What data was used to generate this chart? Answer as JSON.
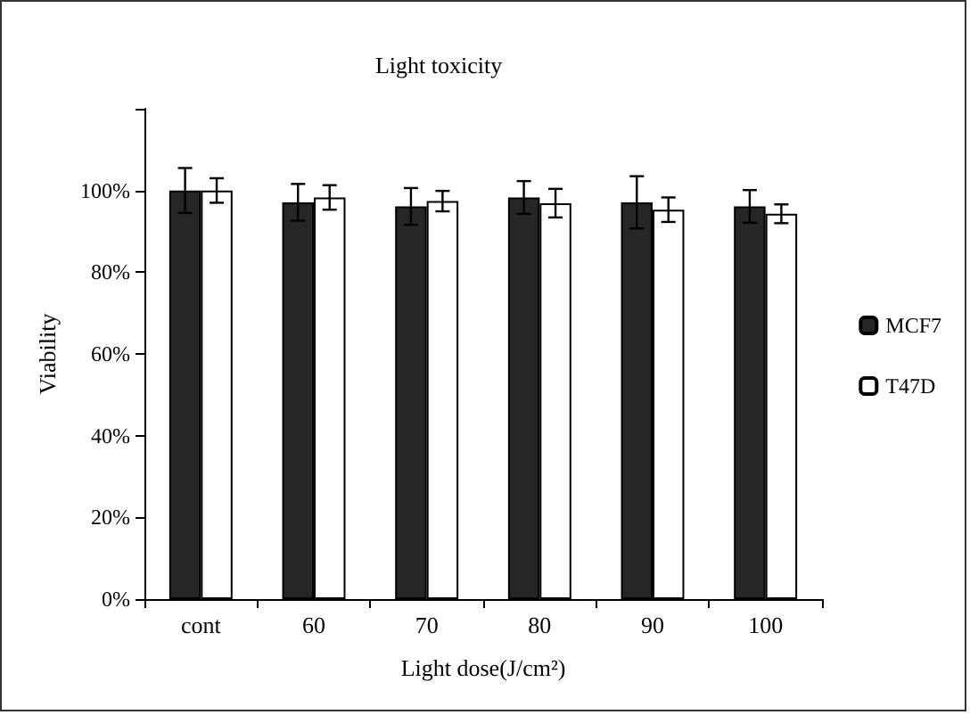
{
  "chart_data": {
    "type": "bar",
    "title": "Light toxicity",
    "xlabel": "Light dose(J/cm²)",
    "ylabel": "Viability",
    "categories": [
      "cont",
      "60",
      "70",
      "80",
      "90",
      "100"
    ],
    "series": [
      {
        "name": "MCF7",
        "color": "#262626",
        "values": [
          100,
          97.1,
          96.1,
          98.3,
          97.1,
          96.1
        ],
        "errors": [
          5.5,
          4.5,
          4.5,
          4,
          6.4,
          4
        ]
      },
      {
        "name": "T47D",
        "color": "#ffffff",
        "values": [
          100,
          98.3,
          97.4,
          96.9,
          95.3,
          94.3
        ],
        "errors": [
          3,
          3,
          2.5,
          3.5,
          3,
          2.3
        ]
      }
    ],
    "ylim": [
      0,
      120
    ],
    "yticks": [
      {
        "value": 0,
        "label": "0%"
      },
      {
        "value": 20,
        "label": "20%"
      },
      {
        "value": 40,
        "label": "40%"
      },
      {
        "value": 60,
        "label": "60%"
      },
      {
        "value": 80,
        "label": "80%"
      },
      {
        "value": 100,
        "label": "100%"
      },
      {
        "value": 120,
        "label": null
      }
    ],
    "grid": false,
    "legend": "right"
  }
}
